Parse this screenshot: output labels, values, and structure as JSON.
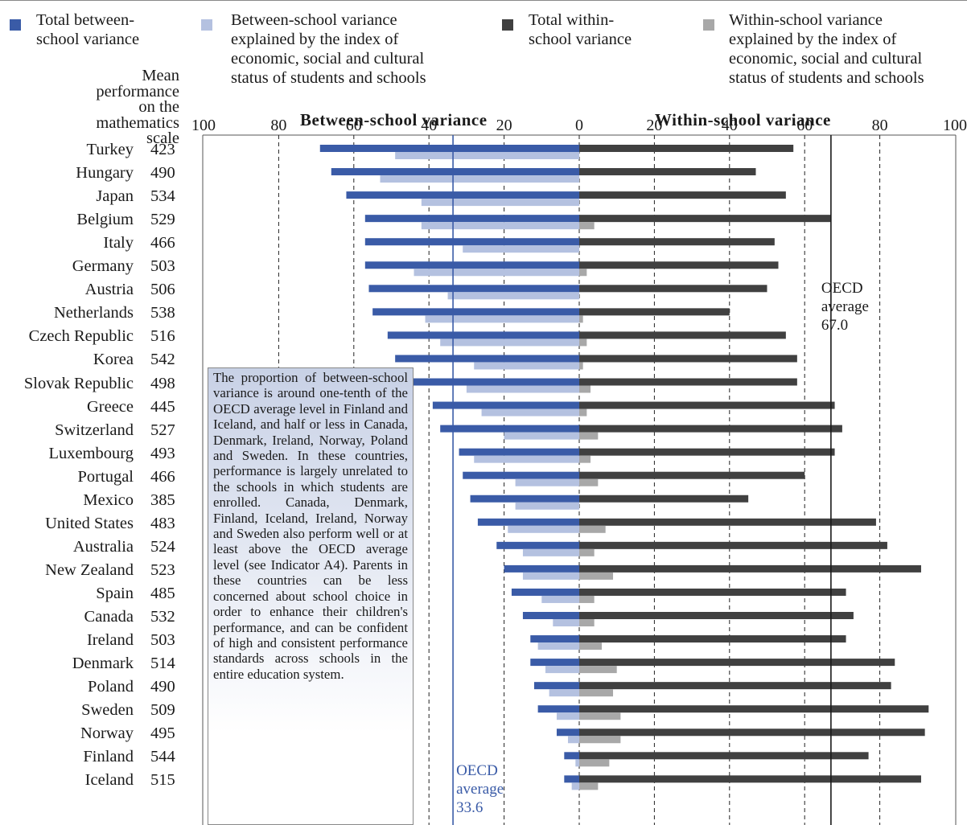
{
  "legend": [
    {
      "text": "Total between-school variance",
      "color": "#3a5ba7"
    },
    {
      "text": "Between-school variance explained by the index of economic, social and cultural status of students and schools",
      "color": "#b4c1e0"
    },
    {
      "text": "Total within-school variance",
      "color": "#404040"
    },
    {
      "text": "Within-school variance explained by the index of economic, social and cultural status of students and schools",
      "color": "#a8a8a8"
    }
  ],
  "legend_lines": [
    [
      "Total between-",
      "school variance"
    ],
    [
      "Between-school variance",
      "explained by the index of",
      "economic, social and cultural",
      "status of students and schools"
    ],
    [
      "Total within-",
      "school variance"
    ],
    [
      "Within-school variance",
      "explained by the index of",
      "economic, social and cultural",
      "status of students and schools"
    ]
  ],
  "mean_header_lines": [
    "Mean",
    "performance",
    "on the",
    "mathematics",
    "scale"
  ],
  "note_text": "The proportion of between-school variance is around one-tenth of the OECD average level in Finland and Iceland, and half or less in Canada, Denmark, Ireland, Norway, Poland and Sweden. In these countries, performance is largely unrelated to the schools in which students are enrolled. Canada, Denmark, Finland, Iceland, Ireland, Norway and Sweden also perform well or at least above the OECD average level (see Indicator A4). Parents in these countries can be less concerned about school choice in order to enhance their children's performance, and can be confident of high and consistent performance standards across schools in the entire education system.",
  "chart_data": {
    "type": "bar",
    "orientation": "horizontal-diverging",
    "left_title": "Between-school variance",
    "right_title": "Within-school variance",
    "left_ticks": [
      "100",
      "80",
      "60",
      "40",
      "20",
      "0"
    ],
    "right_ticks": [
      "20",
      "40",
      "60",
      "80",
      "100"
    ],
    "xlim_left": [
      100,
      0
    ],
    "xlim_right": [
      0,
      100
    ],
    "grid": "dashed vertical at 20, 40, 60, 80",
    "categories": [
      "Turkey",
      "Hungary",
      "Japan",
      "Belgium",
      "Italy",
      "Germany",
      "Austria",
      "Netherlands",
      "Czech Republic",
      "Korea",
      "Slovak Republic",
      "Greece",
      "Switzerland",
      "Luxembourg",
      "Portugal",
      "Mexico",
      "United States",
      "Australia",
      "New Zealand",
      "Spain",
      "Canada",
      "Ireland",
      "Denmark",
      "Poland",
      "Sweden",
      "Norway",
      "Finland",
      "Iceland"
    ],
    "mean_math": [
      "423",
      "490",
      "534",
      "529",
      "466",
      "503",
      "506",
      "538",
      "516",
      "542",
      "498",
      "445",
      "527",
      "493",
      "466",
      "385",
      "483",
      "524",
      "523",
      "485",
      "532",
      "503",
      "514",
      "490",
      "509",
      "495",
      "544",
      "515"
    ],
    "series": [
      {
        "name": "Total between-school variance",
        "side": "left",
        "color": "#3a5ba7",
        "values": [
          69,
          66,
          62,
          57,
          57,
          57,
          56,
          55,
          51,
          49,
          48,
          39,
          37,
          32,
          31,
          29,
          27,
          22,
          20,
          18,
          15,
          13,
          13,
          12,
          11,
          6,
          4,
          4
        ]
      },
      {
        "name": "Between-school variance explained by the index of economic, social and cultural status of students and schools",
        "side": "left",
        "color": "#b4c1e0",
        "values": [
          49,
          53,
          42,
          42,
          31,
          44,
          35,
          41,
          37,
          28,
          30,
          26,
          20,
          28,
          17,
          17,
          19,
          15,
          15,
          10,
          7,
          11,
          9,
          8,
          6,
          3,
          1,
          2
        ]
      },
      {
        "name": "Total within-school variance",
        "side": "right",
        "color": "#404040",
        "values": [
          57,
          47,
          55,
          67,
          52,
          53,
          50,
          40,
          55,
          58,
          58,
          68,
          70,
          68,
          60,
          45,
          79,
          82,
          91,
          71,
          73,
          71,
          84,
          83,
          93,
          92,
          77,
          91
        ]
      },
      {
        "name": "Within-school variance explained by the index of economic, social and cultural status of students and schools",
        "side": "right",
        "color": "#a8a8a8",
        "values": [
          0,
          0,
          0,
          4,
          0,
          2,
          0,
          1,
          2,
          1,
          3,
          2,
          5,
          3,
          5,
          0,
          7,
          4,
          9,
          4,
          4,
          6,
          10,
          9,
          11,
          11,
          8,
          5
        ]
      }
    ],
    "reference_lines": [
      {
        "side": "left",
        "value": 33.6,
        "label_lines": [
          "OECD",
          "average",
          "33.6"
        ],
        "color": "#3a5ba7"
      },
      {
        "side": "right",
        "value": 67.0,
        "label_lines": [
          "OECD",
          "average",
          "67.0"
        ],
        "color": "#1a1a1a"
      }
    ]
  }
}
